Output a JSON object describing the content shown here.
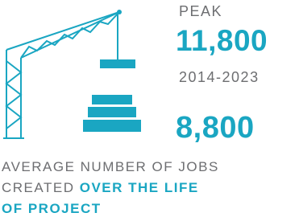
{
  "peak": {
    "label": "PEAK",
    "value": "11,800",
    "period": "2014-2023"
  },
  "average": {
    "value": "8,800",
    "caption": {
      "line1": "AVERAGE NUMBER OF JOBS",
      "line2_plain": "CREATED",
      "line2_bold": "OVER THE LIFE",
      "line3_bold": "OF PROJECT"
    }
  }
}
